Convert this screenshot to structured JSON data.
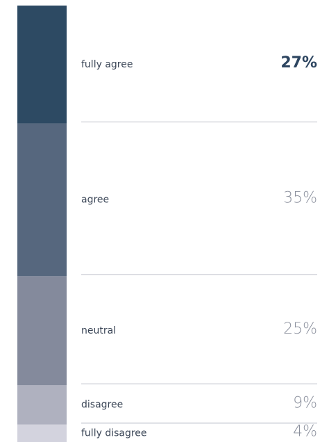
{
  "chart_data": {
    "type": "stacked-bar",
    "categories": [
      "fully agree",
      "agree",
      "neutral",
      "disagree",
      "fully disagree"
    ],
    "values": [
      27,
      35,
      25,
      9,
      4
    ],
    "value_labels": [
      "27%",
      "35%",
      "25%",
      "9%",
      "4%"
    ],
    "colors": [
      "#2d4a63",
      "#56677e",
      "#848a9c",
      "#afb1bf",
      "#d3d3de"
    ]
  }
}
